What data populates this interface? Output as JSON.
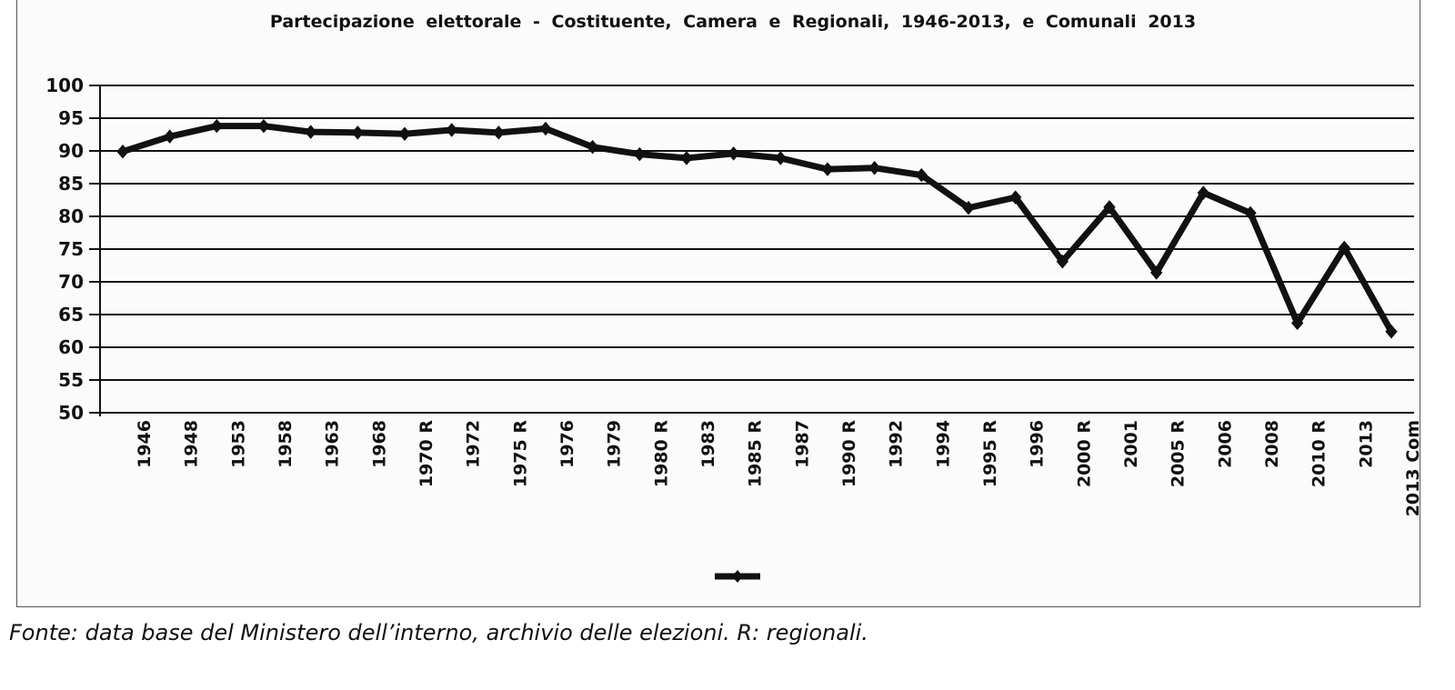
{
  "chart_data": {
    "type": "line",
    "title": "Partecipazione elettorale - Costituente, Camera e Regionali, 1946-2013, e Comunali 2013",
    "xlabel": "",
    "ylabel": "",
    "ylim": [
      50,
      100
    ],
    "yticks": [
      100,
      95,
      90,
      85,
      80,
      75,
      70,
      65,
      60,
      55,
      50
    ],
    "grid": true,
    "legend": "bottom",
    "categories": [
      "1946",
      "1948",
      "1953",
      "1958",
      "1963",
      "1968",
      "1970 R",
      "1972",
      "1975 R",
      "1976",
      "1979",
      "1980 R",
      "1983",
      "1985 R",
      "1987",
      "1990 R",
      "1992",
      "1994",
      "1995 R",
      "1996",
      "2000 R",
      "2001",
      "2005 R",
      "2006",
      "2008",
      "2010 R",
      "2013",
      "2013 Com"
    ],
    "series": [
      {
        "name": "",
        "values": [
          89.9,
          92.2,
          93.8,
          93.8,
          92.9,
          92.8,
          92.6,
          93.2,
          92.8,
          93.4,
          90.6,
          89.5,
          88.9,
          89.6,
          88.9,
          87.2,
          87.4,
          86.3,
          81.3,
          82.9,
          73.1,
          81.4,
          71.4,
          83.6,
          80.5,
          63.7,
          75.2,
          62.4
        ]
      }
    ],
    "colors": {
      "line": "#111111",
      "grid": "#111111",
      "text": "#111111"
    }
  },
  "source": "Fonte: data base del Ministero dell’interno, archivio delle elezioni. R: regionali."
}
